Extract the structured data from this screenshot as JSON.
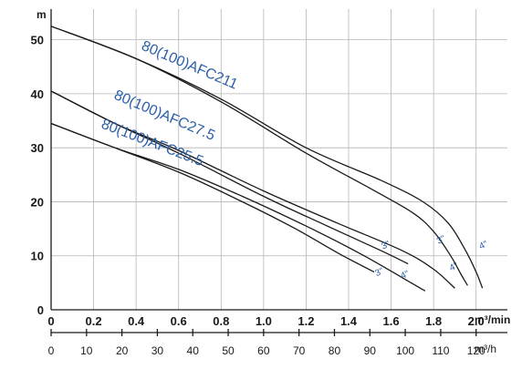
{
  "chart_data": {
    "type": "line",
    "ylabel": "m",
    "xlabel": "m³/min",
    "secondary_xlabel": "m³/h",
    "xlim": [
      0,
      2.1
    ],
    "ylim": [
      0,
      55
    ],
    "x_ticks": [
      "0",
      "0.2",
      "0.4",
      "0.6",
      "0.8",
      "1.0",
      "1.2",
      "1.4",
      "1.6",
      "1.8",
      "2.0"
    ],
    "y_ticks": [
      "0",
      "10",
      "20",
      "30",
      "40",
      "50"
    ],
    "secondary_x_ticks": [
      "0",
      "10",
      "20",
      "30",
      "40",
      "50",
      "60",
      "70",
      "80",
      "90",
      "100",
      "110",
      "120"
    ],
    "grid": true,
    "series": [
      {
        "name": "80(100)AFC211",
        "pipe": "3\"",
        "x": [
          0,
          0.4,
          0.8,
          1.2,
          1.5,
          1.7,
          1.8,
          1.88,
          1.93,
          1.96
        ],
        "y": [
          52.5,
          46.5,
          38.5,
          29,
          22.5,
          18,
          14.5,
          10,
          6.5,
          4.5
        ]
      },
      {
        "name": "80(100)AFC211",
        "pipe": "4\"",
        "x": [
          0,
          0.4,
          0.8,
          1.2,
          1.55,
          1.75,
          1.87,
          1.95,
          2.0,
          2.03
        ],
        "y": [
          52.5,
          46.5,
          39,
          30,
          24,
          20,
          16,
          11,
          7,
          4
        ]
      },
      {
        "name": "80(100)AFC27.5",
        "pipe": "3\"",
        "x": [
          0,
          0.3,
          0.6,
          1.0,
          1.3,
          1.55,
          1.68
        ],
        "y": [
          40.5,
          34.5,
          29,
          21,
          15.5,
          11,
          8.5
        ]
      },
      {
        "name": "80(100)AFC27.5",
        "pipe": "4\"",
        "x": [
          0,
          0.3,
          0.6,
          1.0,
          1.35,
          1.65,
          1.8,
          1.9
        ],
        "y": [
          40.5,
          34.5,
          29.5,
          22,
          16,
          11,
          7.5,
          4
        ]
      },
      {
        "name": "80(100)AFC25.5",
        "pipe": "3\"",
        "x": [
          0,
          0.3,
          0.6,
          0.9,
          1.15,
          1.35,
          1.52
        ],
        "y": [
          34.5,
          30,
          25.5,
          20,
          15,
          10.5,
          7
        ]
      },
      {
        "name": "80(100)AFC25.5",
        "pipe": "4\"",
        "x": [
          0,
          0.3,
          0.6,
          0.9,
          1.2,
          1.45,
          1.65,
          1.76
        ],
        "y": [
          34.5,
          30,
          26,
          21,
          15.5,
          10.5,
          6,
          3.5
        ]
      }
    ],
    "model_labels": [
      "80(100)AFC211",
      "80(100)AFC27.5",
      "80(100)AFC25.5"
    ],
    "pipe_labels": [
      {
        "text": "3\"",
        "x": 1.55,
        "y": 6.5
      },
      {
        "text": "4\"",
        "x": 1.67,
        "y": 6
      },
      {
        "text": "3\"",
        "x": 1.58,
        "y": 11.5
      },
      {
        "text": "4\"",
        "x": 1.9,
        "y": 7.5
      },
      {
        "text": "3\"",
        "x": 1.84,
        "y": 12.5
      },
      {
        "text": "4\"",
        "x": 2.04,
        "y": 11.5
      }
    ]
  }
}
